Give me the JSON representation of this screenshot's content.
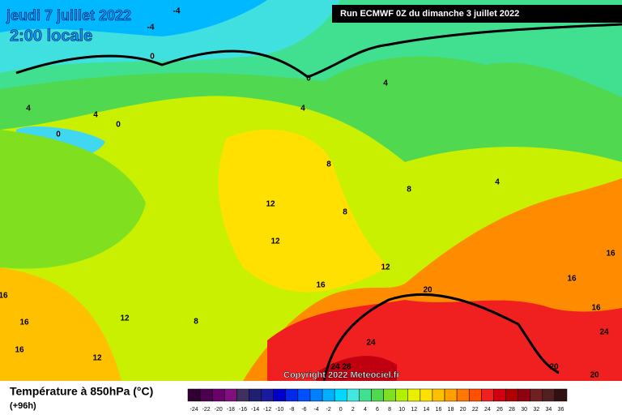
{
  "header": {
    "date": "jeudi 7 juillet 2022",
    "time": "2:00 locale",
    "run": "Run ECMWF 0Z du dimanche 3 juillet 2022"
  },
  "copyright": "Copyright 2022 Meteociel.fr",
  "legend": {
    "title": "Température à 850hPa (°C)",
    "lead": "(+96h)",
    "ticks": [
      -24,
      -22,
      -20,
      -18,
      -16,
      -14,
      -12,
      -10,
      -8,
      -6,
      -4,
      -2,
      0,
      2,
      4,
      6,
      8,
      10,
      12,
      14,
      16,
      18,
      20,
      22,
      24,
      26,
      28,
      30,
      32,
      34,
      36
    ],
    "colors": [
      "#300030",
      "#4b0050",
      "#6a006a",
      "#80107e",
      "#403060",
      "#202070",
      "#1a1aa0",
      "#0000c8",
      "#0028e8",
      "#0050ff",
      "#0080ff",
      "#00b0ff",
      "#00d8ff",
      "#40e8e0",
      "#40e090",
      "#50d850",
      "#80e020",
      "#b0f000",
      "#e8f000",
      "#ffe000",
      "#ffc000",
      "#ffa000",
      "#ff7800",
      "#ff5000",
      "#f02020",
      "#d00010",
      "#b00000",
      "#900010",
      "#702020",
      "#502020",
      "#301010"
    ]
  },
  "map": {
    "contour_labels": [
      -4,
      -4,
      0,
      0,
      4,
      4,
      4,
      0,
      4,
      0,
      8,
      12,
      8,
      4,
      8,
      12,
      12,
      16,
      20,
      16,
      16,
      16,
      12,
      8,
      16,
      16,
      16,
      24,
      24,
      12,
      24,
      28,
      20,
      20
    ]
  }
}
